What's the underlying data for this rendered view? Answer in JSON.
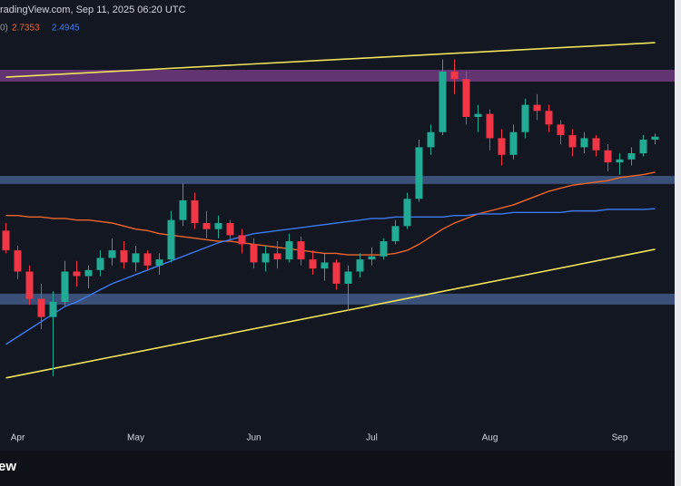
{
  "chart_data": {
    "type": "candlestick",
    "header": "radingView.com, Sep 11, 2025 06:20 UTC",
    "legend_prefix": "0)",
    "logo": "ew",
    "background": "#131722",
    "up_color": "#22ab94",
    "down_color": "#f23645",
    "ylim": [
      1.06,
      3.74
    ],
    "categories": [
      null,
      "Apr",
      null,
      null,
      null,
      null,
      null,
      null,
      null,
      null,
      null,
      "May",
      null,
      null,
      null,
      null,
      null,
      null,
      null,
      null,
      null,
      "Jun",
      null,
      null,
      null,
      null,
      null,
      null,
      null,
      null,
      null,
      "Jul",
      null,
      null,
      null,
      null,
      null,
      null,
      null,
      null,
      null,
      "Aug",
      null,
      null,
      null,
      null,
      null,
      null,
      null,
      null,
      null,
      null,
      "Sep",
      null,
      null,
      null
    ],
    "open": [
      2.35,
      2.22,
      2.08,
      1.9,
      1.78,
      1.88,
      2.08,
      2.05,
      2.09,
      2.17,
      2.22,
      2.14,
      2.2,
      2.12,
      2.16,
      2.42,
      2.55,
      2.4,
      2.36,
      2.4,
      2.32,
      2.26,
      2.14,
      2.2,
      2.16,
      2.28,
      2.16,
      2.1,
      2.14,
      2.0,
      2.08,
      2.16,
      2.18,
      2.28,
      2.38,
      2.56,
      2.9,
      3.0,
      3.4,
      3.35,
      3.1,
      3.12,
      2.96,
      2.85,
      3.0,
      3.18,
      3.14,
      3.05,
      2.98,
      2.9,
      2.96,
      2.88,
      2.8,
      2.82,
      2.86,
      2.95
    ],
    "high": [
      2.4,
      2.25,
      2.12,
      2.0,
      1.95,
      2.15,
      2.15,
      2.12,
      2.22,
      2.3,
      2.28,
      2.25,
      2.22,
      2.2,
      2.48,
      2.66,
      2.6,
      2.48,
      2.45,
      2.42,
      2.36,
      2.3,
      2.25,
      2.28,
      2.33,
      2.31,
      2.22,
      2.2,
      2.16,
      2.12,
      2.2,
      2.24,
      2.3,
      2.42,
      2.6,
      2.95,
      3.05,
      3.48,
      3.48,
      3.4,
      3.18,
      3.15,
      3.02,
      3.05,
      3.22,
      3.25,
      3.18,
      3.08,
      3.02,
      3.0,
      2.98,
      2.92,
      2.86,
      2.9,
      2.98,
      2.99
    ],
    "low": [
      2.2,
      2.03,
      1.86,
      1.7,
      1.39,
      1.85,
      1.98,
      1.97,
      2.05,
      2.12,
      2.1,
      2.08,
      2.09,
      2.06,
      2.14,
      2.38,
      2.36,
      2.3,
      2.3,
      2.28,
      2.2,
      2.1,
      2.08,
      2.1,
      2.14,
      2.12,
      2.06,
      2.02,
      1.96,
      1.82,
      2.04,
      2.12,
      2.16,
      2.26,
      2.36,
      2.54,
      2.85,
      2.98,
      3.25,
      3.05,
      3.0,
      2.88,
      2.78,
      2.82,
      2.96,
      3.08,
      3.0,
      2.92,
      2.84,
      2.86,
      2.84,
      2.74,
      2.72,
      2.78,
      2.84,
      2.92
    ],
    "close": [
      2.22,
      2.08,
      1.9,
      1.78,
      1.88,
      2.08,
      2.05,
      2.09,
      2.17,
      2.22,
      2.14,
      2.2,
      2.12,
      2.16,
      2.42,
      2.55,
      2.4,
      2.36,
      2.4,
      2.32,
      2.26,
      2.14,
      2.2,
      2.16,
      2.28,
      2.16,
      2.1,
      2.14,
      2.0,
      2.08,
      2.16,
      2.18,
      2.28,
      2.38,
      2.56,
      2.9,
      3.0,
      3.4,
      3.35,
      3.1,
      3.12,
      2.96,
      2.85,
      3.0,
      3.18,
      3.14,
      3.05,
      2.98,
      2.9,
      2.96,
      2.88,
      2.8,
      2.82,
      2.86,
      2.95,
      2.97
    ],
    "series": [
      {
        "color": "#f0662a",
        "values": [
          2.45,
          2.45,
          2.44,
          2.44,
          2.43,
          2.43,
          2.42,
          2.42,
          2.41,
          2.4,
          2.38,
          2.36,
          2.35,
          2.33,
          2.32,
          2.31,
          2.3,
          2.29,
          2.28,
          2.28,
          2.27,
          2.26,
          2.25,
          2.24,
          2.23,
          2.22,
          2.21,
          2.2,
          2.2,
          2.19,
          2.19,
          2.19,
          2.19,
          2.2,
          2.22,
          2.26,
          2.31,
          2.36,
          2.4,
          2.43,
          2.46,
          2.48,
          2.5,
          2.52,
          2.55,
          2.58,
          2.61,
          2.63,
          2.65,
          2.66,
          2.67,
          2.68,
          2.7,
          2.71,
          2.72,
          2.7353
        ]
      },
      {
        "color": "#3d7bf2",
        "values": [
          1.6,
          1.65,
          1.7,
          1.75,
          1.8,
          1.85,
          1.88,
          1.92,
          1.96,
          2.0,
          2.03,
          2.06,
          2.09,
          2.12,
          2.15,
          2.18,
          2.21,
          2.24,
          2.27,
          2.29,
          2.31,
          2.33,
          2.34,
          2.35,
          2.36,
          2.37,
          2.38,
          2.39,
          2.4,
          2.41,
          2.42,
          2.43,
          2.43,
          2.44,
          2.44,
          2.44,
          2.44,
          2.44,
          2.45,
          2.45,
          2.46,
          2.46,
          2.46,
          2.47,
          2.47,
          2.47,
          2.47,
          2.47,
          2.48,
          2.48,
          2.48,
          2.49,
          2.49,
          2.49,
          2.49,
          2.4945
        ]
      }
    ],
    "zones": [
      {
        "color": "#7d3f8e",
        "range": [
          3.333,
          3.411
        ]
      },
      {
        "color": "#4a6496",
        "range": [
          2.658,
          2.711
        ]
      },
      {
        "color": "#4a6496",
        "range": [
          1.862,
          1.934
        ]
      }
    ],
    "trendlines": [
      {
        "color": "#f2e35c",
        "values": [
          3.363,
          3.59
        ]
      },
      {
        "color": "#f2e35c",
        "values": [
          1.378,
          2.227
        ]
      }
    ]
  }
}
